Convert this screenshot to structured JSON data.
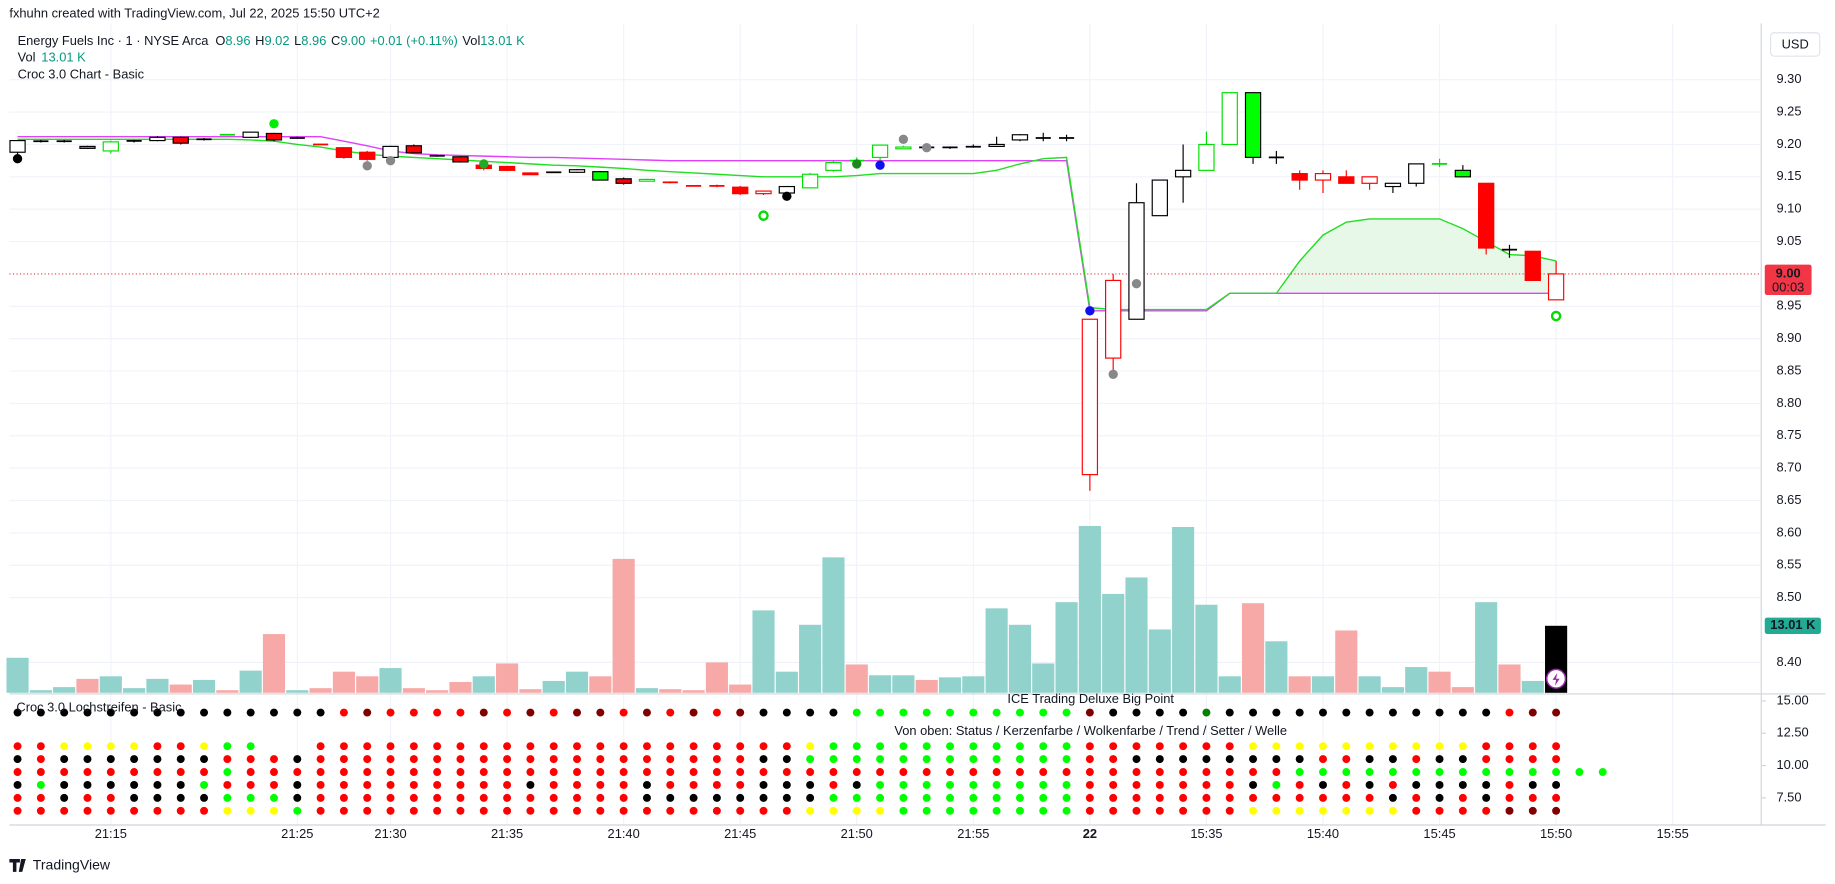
{
  "credit": "fxhuhn created with TradingView.com, Jul 22, 2025 15:50 UTC+2",
  "brand": "TradingView",
  "chart_data": {
    "type": "candlestick",
    "title": "Energy Fuels Inc · 1 · NYSE Arca",
    "ohlc_legend": [
      {
        "label": "O",
        "value": "8.96"
      },
      {
        "label": "H",
        "value": "9.02"
      },
      {
        "label": "L",
        "value": "8.96"
      },
      {
        "label": "C",
        "value": "9.00"
      }
    ],
    "change": "+0.01 (+0.11%)",
    "volume_legend": {
      "label": "Vol",
      "value": "13.01 K"
    },
    "indicator": "Croc 3.0 Chart - Basic",
    "currency": "USD",
    "xlim": [
      -0.35,
      74.8
    ],
    "xticks": [
      {
        "value": 4,
        "label": "21:15"
      },
      {
        "value": 12,
        "label": "21:25"
      },
      {
        "value": 16,
        "label": "21:30"
      },
      {
        "value": 21,
        "label": "21:35"
      },
      {
        "value": 26,
        "label": "21:40"
      },
      {
        "value": 31,
        "label": "21:45"
      },
      {
        "value": 36,
        "label": "21:50"
      },
      {
        "value": 41,
        "label": "21:55"
      },
      {
        "value": 46,
        "label": "22"
      },
      {
        "value": 51,
        "label": "15:35"
      },
      {
        "value": 56,
        "label": "15:40"
      },
      {
        "value": 61,
        "label": "15:45"
      },
      {
        "value": 66,
        "label": "15:50"
      },
      {
        "value": 71,
        "label": "15:55"
      }
    ],
    "ylim": [
      8.353,
      9.387
    ],
    "yticks": [
      {
        "value": 9.3,
        "label": "9.30"
      },
      {
        "value": 9.25,
        "label": "9.25"
      },
      {
        "value": 9.2,
        "label": "9.20"
      },
      {
        "value": 9.15,
        "label": "9.15"
      },
      {
        "value": 9.1,
        "label": "9.10"
      },
      {
        "value": 9.05,
        "label": "9.05"
      },
      {
        "value": 8.95,
        "label": "8.95"
      },
      {
        "value": 8.9,
        "label": "8.90"
      },
      {
        "value": 8.85,
        "label": "8.85"
      },
      {
        "value": 8.8,
        "label": "8.80"
      },
      {
        "value": 8.75,
        "label": "8.75"
      },
      {
        "value": 8.7,
        "label": "8.70"
      },
      {
        "value": 8.65,
        "label": "8.65"
      },
      {
        "value": 8.6,
        "label": "8.60"
      },
      {
        "value": 8.55,
        "label": "8.55"
      },
      {
        "value": 8.5,
        "label": "8.50"
      },
      {
        "value": 8.4,
        "label": "8.40"
      }
    ],
    "grid": true,
    "last_price": {
      "value": 9.0,
      "label": "9.00",
      "countdown": "00:03",
      "color": "#f23645"
    },
    "open": [
      9.188,
      9.205,
      9.205,
      9.197,
      9.19,
      9.205,
      9.206,
      9.211,
      9.208,
      9.215,
      9.211,
      9.217,
      9.21,
      9.2,
      9.195,
      9.188,
      9.18,
      9.198,
      9.183,
      9.181,
      9.168,
      9.166,
      9.156,
      9.157,
      9.157,
      9.158,
      9.147,
      9.145,
      9.142,
      9.136,
      9.137,
      9.134,
      9.124,
      9.125,
      9.133,
      9.16,
      9.175,
      9.18,
      9.195,
      9.196,
      9.195,
      9.196,
      9.197,
      9.207,
      9.21,
      9.21,
      8.93,
      8.99,
      8.93,
      9.09,
      9.15,
      9.16,
      9.2,
      9.28,
      9.18,
      9.155,
      9.145,
      9.15,
      9.14,
      9.135,
      9.14,
      9.17,
      9.16,
      9.14,
      9.04,
      9.035,
      8.96
    ],
    "high": [
      9.206,
      9.207,
      9.207,
      9.198,
      9.206,
      9.207,
      9.213,
      9.212,
      9.21,
      9.216,
      9.22,
      9.218,
      9.212,
      9.201,
      9.196,
      9.19,
      9.198,
      9.2,
      9.184,
      9.182,
      9.17,
      9.167,
      9.157,
      9.158,
      9.162,
      9.159,
      9.149,
      9.147,
      9.143,
      9.137,
      9.138,
      9.136,
      9.128,
      9.135,
      9.156,
      9.175,
      9.18,
      9.2,
      9.198,
      9.197,
      9.197,
      9.2,
      9.212,
      9.216,
      9.218,
      9.215,
      8.93,
      9.0,
      9.14,
      9.145,
      9.2,
      9.22,
      9.28,
      9.28,
      9.19,
      9.16,
      9.16,
      9.16,
      9.15,
      9.14,
      9.17,
      9.178,
      9.168,
      9.14,
      9.045,
      9.035,
      9.02
    ],
    "low": [
      9.185,
      9.203,
      9.203,
      9.193,
      9.186,
      9.203,
      9.205,
      9.2,
      9.206,
      9.214,
      9.21,
      9.205,
      9.209,
      9.199,
      9.178,
      9.175,
      9.178,
      9.186,
      9.181,
      9.172,
      9.16,
      9.159,
      9.154,
      9.156,
      9.156,
      9.145,
      9.138,
      9.143,
      9.14,
      9.135,
      9.134,
      9.122,
      9.122,
      9.124,
      9.132,
      9.158,
      9.172,
      9.175,
      9.193,
      9.194,
      9.193,
      9.195,
      9.196,
      9.205,
      9.205,
      9.205,
      8.665,
      8.85,
      8.93,
      9.09,
      9.11,
      9.16,
      9.2,
      9.17,
      9.17,
      9.13,
      9.125,
      9.14,
      9.13,
      9.125,
      9.135,
      9.165,
      9.15,
      9.03,
      9.025,
      8.99,
      8.96
    ],
    "close": [
      9.206,
      9.205,
      9.205,
      9.194,
      9.204,
      9.206,
      9.211,
      9.202,
      9.208,
      9.215,
      9.219,
      9.207,
      9.21,
      9.2,
      9.18,
      9.177,
      9.197,
      9.187,
      9.182,
      9.173,
      9.163,
      9.16,
      9.155,
      9.157,
      9.161,
      9.145,
      9.14,
      9.146,
      9.141,
      9.136,
      9.135,
      9.124,
      9.128,
      9.135,
      9.154,
      9.172,
      9.175,
      9.199,
      9.196,
      9.195,
      9.196,
      9.197,
      9.2,
      9.215,
      9.21,
      9.21,
      8.69,
      8.87,
      9.11,
      9.145,
      9.16,
      9.2,
      9.28,
      9.18,
      9.18,
      9.145,
      9.155,
      9.14,
      9.15,
      9.14,
      9.17,
      9.17,
      9.15,
      9.04,
      9.035,
      8.99,
      9.0
    ],
    "candle_style": "ullbgluRlauRlerruRlRrrrluGRgeeerhuggaggllluullhhuuuggGlrhrhuuaGrlrh",
    "candle_styles": {
      "u": [
        "#ffffff",
        "#000000"
      ],
      "l": [
        "none",
        "#000000"
      ],
      "b": [
        "#c89b3c",
        "#000000"
      ],
      "g": [
        "#ffffff",
        "#00e000"
      ],
      "R": [
        "#ff0000",
        "#000000"
      ],
      "a": [
        "none",
        "#00e000"
      ],
      "e": [
        "none",
        "#ff0000"
      ],
      "r": [
        "#ff0000",
        "#ff0000"
      ],
      "G": [
        "#00ff00",
        "#000000"
      ],
      "h": [
        "#ffffff",
        "#ff0000"
      ]
    },
    "volume": [
      6.8,
      0.5,
      1.1,
      2.7,
      3.2,
      0.9,
      2.7,
      1.6,
      2.5,
      0.5,
      4.3,
      11.4,
      0.5,
      0.9,
      4.1,
      3.2,
      4.8,
      0.9,
      0.5,
      2.1,
      3.2,
      5.7,
      0.7,
      2.3,
      4.1,
      3.2,
      26.0,
      0.9,
      0.7,
      0.5,
      5.9,
      1.6,
      16.0,
      4.1,
      13.2,
      26.3,
      5.5,
      3.4,
      3.4,
      2.5,
      3.0,
      3.2,
      16.4,
      13.2,
      5.7,
      17.6,
      32.4,
      19.2,
      22.4,
      12.3,
      32.2,
      17.1,
      3.2,
      17.4,
      10.0,
      3.2,
      3.2,
      12.1,
      3.2,
      1.1,
      5.0,
      4.1,
      1.1,
      17.6,
      5.5,
      2.3,
      13.01
    ],
    "volume_ylim": [
      0,
      130
    ],
    "volume_colors": "tttrtttrtrtrtrrrtrrrtrrttrrtrrrrttttrttrtttttttttttttrtrtrtttrrtrt",
    "volume_palette": {
      "t": "#92d2cc",
      "r": "#f7a9a7"
    },
    "series": [
      {
        "color": "#e040fb",
        "values": [
          9.212,
          9.212,
          9.212,
          9.212,
          9.212,
          9.212,
          9.212,
          9.212,
          9.212,
          9.212,
          9.212,
          9.212,
          9.212,
          9.212,
          9.205,
          9.198,
          9.19,
          9.186,
          9.184,
          9.183,
          9.182,
          9.181,
          9.18,
          9.18,
          9.179,
          9.178,
          9.177,
          9.176,
          9.175,
          9.175,
          9.175,
          9.175,
          9.175,
          9.175,
          9.175,
          9.175,
          9.175,
          9.175,
          9.175,
          9.175,
          9.175,
          9.175,
          9.175,
          9.175,
          9.175,
          9.175,
          8.943,
          8.943,
          8.943,
          8.943,
          8.943,
          8.943,
          8.97,
          8.97,
          8.97,
          8.97,
          8.97,
          8.97,
          8.97,
          8.97,
          8.97,
          8.97,
          8.97,
          8.97,
          8.97,
          8.97,
          8.97
        ]
      },
      {
        "color": "#22dd22",
        "values": [
          9.208,
          9.208,
          9.208,
          9.208,
          9.208,
          9.208,
          9.208,
          9.208,
          9.208,
          9.208,
          9.207,
          9.205,
          9.2,
          9.196,
          9.19,
          9.185,
          9.182,
          9.18,
          9.178,
          9.176,
          9.174,
          9.172,
          9.17,
          9.168,
          9.167,
          9.165,
          9.163,
          9.16,
          9.158,
          9.156,
          9.154,
          9.152,
          9.15,
          9.15,
          9.15,
          9.15,
          9.152,
          9.155,
          9.155,
          9.155,
          9.155,
          9.155,
          9.16,
          9.17,
          9.178,
          9.18,
          8.948,
          8.945,
          8.945,
          8.945,
          8.945,
          8.945,
          8.97,
          8.97,
          8.97,
          9.02,
          9.06,
          9.08,
          9.085,
          9.085,
          9.085,
          9.085,
          9.07,
          9.05,
          9.03,
          9.028,
          9.02
        ]
      }
    ],
    "cloud_color": "#e8f8e8",
    "markers": [
      {
        "index": 0,
        "price": 9.178,
        "color": "#000000"
      },
      {
        "index": 11,
        "price": 9.232,
        "color": "#00ee00"
      },
      {
        "index": 15,
        "price": 9.167,
        "color": "#888888"
      },
      {
        "index": 16,
        "price": 9.175,
        "color": "#888888"
      },
      {
        "index": 20,
        "price": 9.17,
        "color": "#22aa22"
      },
      {
        "index": 32,
        "price": 9.09,
        "color": "#00dd00",
        "hollow": true
      },
      {
        "index": 33,
        "price": 9.12,
        "color": "#000000"
      },
      {
        "index": 36,
        "price": 9.17,
        "color": "#1a8a1a"
      },
      {
        "index": 37,
        "price": 9.168,
        "color": "#1010ee"
      },
      {
        "index": 38,
        "price": 9.208,
        "color": "#888888"
      },
      {
        "index": 39,
        "price": 9.195,
        "color": "#888888"
      },
      {
        "index": 46,
        "price": 8.943,
        "color": "#1010ee"
      },
      {
        "index": 47,
        "price": 8.845,
        "color": "#888888"
      },
      {
        "index": 48,
        "price": 8.985,
        "color": "#888888"
      },
      {
        "index": 66,
        "price": 8.935,
        "color": "#00dd00",
        "hollow": true
      }
    ],
    "lower_pane": {
      "title": "Croc 3.0 Lochstreifen - Basic",
      "heading": "ICE Trading Deluxe Big Point",
      "subheading": "Von oben: Status / Kerzenfarbe / Wolkenfarbe / Trend / Setter / Welle",
      "ylim": [
        5.4,
        15.45
      ],
      "yticks": [
        {
          "value": 15,
          "label": "15.00"
        },
        {
          "value": 12.5,
          "label": "12.50"
        },
        {
          "value": 10,
          "label": "10.00"
        },
        {
          "value": 7.5,
          "label": "7.50"
        }
      ],
      "row_values": [
        14.1,
        11.5,
        10.5,
        9.5,
        8.5,
        7.5,
        6.5
      ],
      "rows": [
        "kkkkkkkkkkkkkkrdrrrrdrdrddrdrdrdkkkkggggggggggdkkkkGkkkkkkkkkkkkrdd",
        "rryyyyrrygg  rrrrrrrrrrrrrrrrrrrrrygggggggggggrrrrrrryyyyyyyyyyrrrr",
        "krkkkkkkkrrrkrrrrrrrrrrrrrrrrrrrkkggggggggggggrrkkkkkkkkrrkkrkkrrrr",
        "rrrrrrrrrgrrrrrrrrrrrrrrrrrrrrrrrrrrrrrrrrrrrrrrrrrrrrrgggggggggggggg",
        "kgkkkkkkgrrrkrrrrrrrrrkrrrrkrrrrkkkrkgggggggggrrrrrrrkgrkrkrkkkkrkk",
        "rrkrrkkkkgggkrrrrrrrrrrrrrrkkkkkkkkgggggggggggrrrrrrrrrrrrrkrkrkrrr",
        "rrrrrrrrryyygrrrrrrrrrrrrrrrrrrrrryyyyggggggggrrrrrrryyyyyyyrrrrddd"
      ],
      "palette": {
        "k": "#000000",
        "r": "#ff0000",
        "y": "#ffff00",
        "g": "#00ff00",
        "d": "#800000",
        "G": "#008000"
      }
    }
  }
}
